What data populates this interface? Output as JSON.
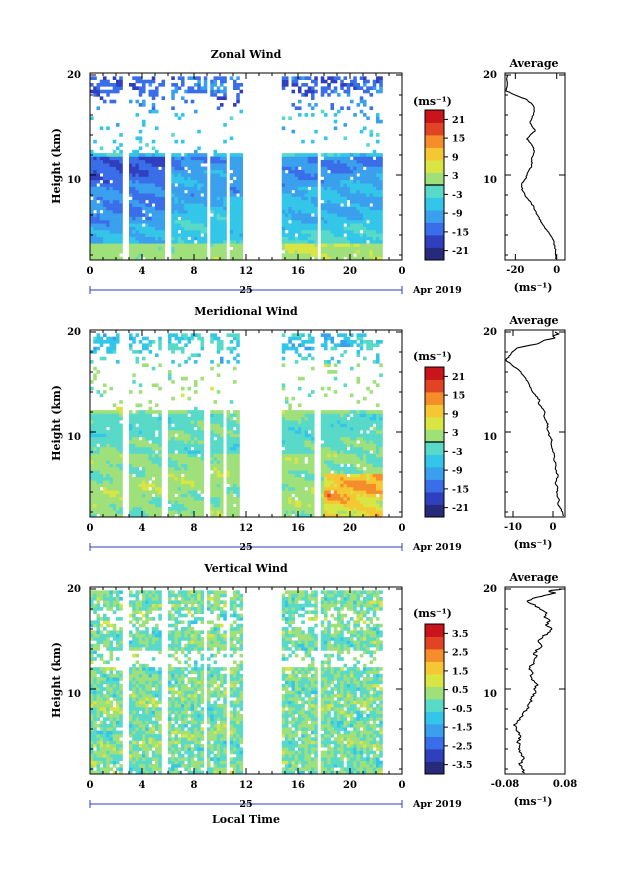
{
  "figure": {
    "x_axis_label": "Local Time",
    "time_marker": "Apr 2019",
    "time_ticks": [
      "0",
      "4",
      "8",
      "12",
      "16",
      "20",
      "0"
    ],
    "day_label": "25",
    "y_axis_label": "Height (km)",
    "height_ticks": [
      "20",
      "10"
    ],
    "colorbar_unit": "(ms⁻¹)",
    "avg_unit": "(ms⁻¹)",
    "avg_title": "Average"
  },
  "chart_data": [
    {
      "type": "heatmap",
      "title": "Zonal Wind",
      "xlabel": "",
      "ylabel": "Height (km)",
      "xlim": [
        0,
        24
      ],
      "ylim": [
        1.5,
        20.2
      ],
      "colorbar": {
        "unit": "(ms⁻¹)",
        "range": [
          -24,
          24
        ],
        "ticks": [
          "21",
          "15",
          "9",
          "3",
          "-3",
          "-9",
          "-15",
          "-21"
        ],
        "tick_values": [
          21,
          15,
          9,
          3,
          -3,
          -9,
          -15,
          -21
        ],
        "zero_line": true
      },
      "data_gaps_local_time": [
        [
          2.6,
          2.9
        ],
        [
          5.8,
          6.2
        ],
        [
          9.0,
          9.3
        ],
        [
          10.6,
          10.8
        ],
        [
          11.7,
          14.8
        ],
        [
          17.4,
          17.8
        ]
      ],
      "summary": "Westward (negative) wind of about -3 to -15 m/s below 12 km, strongest near 10 km; positive near surface; sparse returns 12-16 km; weak easterly layer near 18-19 km",
      "average_profile": {
        "title": "Average",
        "xlabel": "(ms⁻¹)",
        "xticks": [
          "-20",
          "0"
        ],
        "xtick_values": [
          -20,
          0
        ],
        "xlim": [
          -25,
          4
        ],
        "yticks": [
          "20",
          "10"
        ],
        "ylim": [
          1.5,
          20.2
        ],
        "x": [
          -0.5,
          -0.5,
          -0.6,
          -0.9,
          -1.3,
          -2.0,
          -3.1,
          -4.5,
          -5.9,
          -7.2,
          -8.5,
          -9.3,
          -10.2,
          -11.0,
          -12.3,
          -13.9,
          -15.4,
          -16.4,
          -17.0,
          -16.8,
          -15.2,
          -14.3,
          -13.6,
          -12.1,
          -11.8,
          -12.2,
          -11.3,
          -10.8,
          -11.5,
          -12.7,
          -14.5,
          -12.8,
          -10.4,
          -11.7,
          -12.9,
          -12.1,
          -11.2,
          -10.8,
          -11.0,
          -12.4,
          -15.0,
          -20.1,
          -24.5,
          -24.0,
          -23.8
        ],
        "y": [
          1.6,
          2.0,
          2.4,
          2.8,
          3.2,
          3.6,
          4.0,
          4.4,
          4.8,
          5.2,
          5.6,
          6.0,
          6.4,
          6.8,
          7.2,
          7.6,
          8.0,
          8.4,
          8.8,
          9.2,
          9.6,
          10.0,
          10.4,
          10.8,
          11.2,
          11.6,
          12.0,
          12.4,
          12.8,
          13.2,
          13.6,
          14.0,
          14.4,
          14.8,
          15.2,
          15.6,
          16.0,
          16.4,
          16.8,
          17.2,
          17.6,
          18.0,
          18.4,
          18.8,
          20.0
        ]
      }
    },
    {
      "type": "heatmap",
      "title": "Meridional Wind",
      "xlabel": "",
      "ylabel": "Height (km)",
      "xlim": [
        0,
        24
      ],
      "ylim": [
        1.5,
        20.2
      ],
      "colorbar": {
        "unit": "(ms⁻¹)",
        "range": [
          -24,
          24
        ],
        "ticks": [
          "21",
          "15",
          "9",
          "3",
          "-3",
          "-9",
          "-15",
          "-21"
        ],
        "tick_values": [
          21,
          15,
          9,
          3,
          -3,
          -9,
          -15,
          -21
        ],
        "zero_line": true
      },
      "data_gaps_local_time": [
        [
          2.6,
          2.9
        ],
        [
          5.5,
          5.9
        ],
        [
          8.7,
          9.2
        ],
        [
          10.3,
          10.6
        ],
        [
          11.4,
          14.8
        ],
        [
          17.3,
          17.7
        ]
      ],
      "summary": "Mostly weak positive (0-9 m/s) meridional wind below 12 km, stronger southerly up to about 15 m/s at 20-22 LT below 5 km; patches of negative values near 8-12 km",
      "average_profile": {
        "title": "Average",
        "xlabel": "(ms⁻¹)",
        "xticks": [
          "-10",
          "0"
        ],
        "xtick_values": [
          -10,
          0
        ],
        "xlim": [
          -12,
          3
        ],
        "yticks": [
          "20",
          "10"
        ],
        "ylim": [
          1.5,
          20.2
        ],
        "x": [
          2.6,
          2.4,
          1.8,
          1.2,
          1.6,
          1.0,
          0.9,
          1.2,
          0.6,
          0.9,
          1.3,
          0.8,
          0.6,
          0.7,
          0.2,
          0.4,
          0.0,
          -0.3,
          -0.5,
          -0.2,
          -0.9,
          -1.1,
          -1.5,
          -1.2,
          -1.9,
          -2.3,
          -2.0,
          -2.8,
          -3.6,
          -3.3,
          -4.3,
          -5.1,
          -5.5,
          -6.0,
          -6.7,
          -7.3,
          -8.0,
          -9.2,
          -10.5,
          -11.8,
          -11.0,
          -10.2,
          -9.0,
          -4.0,
          -2.0,
          0.5,
          0.0,
          1.5,
          0.5
        ],
        "y": [
          1.6,
          2.0,
          2.4,
          2.8,
          3.2,
          3.6,
          4.0,
          4.4,
          4.8,
          5.2,
          5.6,
          6.0,
          6.4,
          6.8,
          7.2,
          7.6,
          8.0,
          8.4,
          8.8,
          9.2,
          9.6,
          10.0,
          10.4,
          10.8,
          11.2,
          11.6,
          12.0,
          12.4,
          12.8,
          13.2,
          13.6,
          14.0,
          14.4,
          14.8,
          15.2,
          15.6,
          16.0,
          16.4,
          16.8,
          17.2,
          17.6,
          18.0,
          18.4,
          18.8,
          19.2,
          19.4,
          19.6,
          19.8,
          20.0
        ]
      }
    },
    {
      "type": "heatmap",
      "title": "Vertical Wind",
      "xlabel": "Local Time",
      "ylabel": "Height (km)",
      "xlim": [
        0,
        24
      ],
      "ylim": [
        1.5,
        20.2
      ],
      "colorbar": {
        "unit": "(ms⁻¹)",
        "range": [
          -4,
          4
        ],
        "ticks": [
          "3.5",
          "2.5",
          "1.5",
          "0.5",
          "-0.5",
          "-1.5",
          "-2.5",
          "-3.5"
        ],
        "tick_values": [
          3.5,
          2.5,
          1.5,
          0.5,
          -0.5,
          -1.5,
          -2.5,
          -3.5
        ],
        "zero_line": false
      },
      "data_gaps_local_time": [
        [
          2.6,
          2.9
        ],
        [
          5.6,
          6.0
        ],
        [
          8.7,
          9.1
        ],
        [
          10.4,
          10.7
        ],
        [
          11.7,
          14.8
        ],
        [
          17.4,
          17.7
        ]
      ],
      "summary": "Vertical wind mostly within +/-0.5 m/s at all heights",
      "average_profile": {
        "title": "Average",
        "xlabel": "(ms⁻¹)",
        "xticks": [
          "-0.08",
          "0.08"
        ],
        "xtick_values": [
          -0.08,
          0.08
        ],
        "xlim": [
          -0.08,
          0.08
        ],
        "yticks": [
          "20",
          "10"
        ],
        "ylim": [
          1.5,
          20.2
        ],
        "x": [
          -0.028,
          -0.034,
          -0.041,
          -0.036,
          -0.03,
          -0.037,
          -0.044,
          -0.04,
          -0.046,
          -0.038,
          -0.041,
          -0.05,
          -0.057,
          -0.047,
          -0.037,
          -0.032,
          -0.022,
          -0.019,
          -0.008,
          -0.01,
          0.002,
          -0.003,
          0.008,
          -0.002,
          -0.01,
          -0.005,
          -0.016,
          -0.009,
          -0.002,
          0.004,
          -0.003,
          0.01,
          0.017,
          0.008,
          0.021,
          0.034,
          0.045,
          0.028,
          0.04,
          0.024,
          0.032,
          0.013,
          0.001,
          -0.021,
          0.008,
          0.03,
          0.055,
          0.037,
          0.072
        ],
        "y": [
          1.6,
          2.0,
          2.4,
          2.8,
          3.2,
          3.6,
          4.0,
          4.4,
          4.8,
          5.2,
          5.6,
          6.0,
          6.4,
          6.8,
          7.2,
          7.6,
          8.0,
          8.4,
          8.8,
          9.2,
          9.6,
          10.0,
          10.4,
          10.8,
          11.2,
          11.6,
          12.0,
          12.4,
          12.8,
          13.2,
          13.6,
          14.0,
          14.4,
          14.8,
          15.2,
          15.6,
          16.0,
          16.4,
          16.8,
          17.2,
          17.6,
          18.0,
          18.4,
          18.8,
          19.2,
          19.4,
          19.6,
          19.8,
          20.0
        ]
      }
    }
  ],
  "colors": {
    "colormap": [
      "#262a7a",
      "#2f3fbd",
      "#3a6ee8",
      "#3aa0ee",
      "#33c6e8",
      "#59d9c8",
      "#9fe07b",
      "#d8e542",
      "#f5c733",
      "#f48d2a",
      "#e04424",
      "#c8141a"
    ],
    "line": "#000000"
  }
}
